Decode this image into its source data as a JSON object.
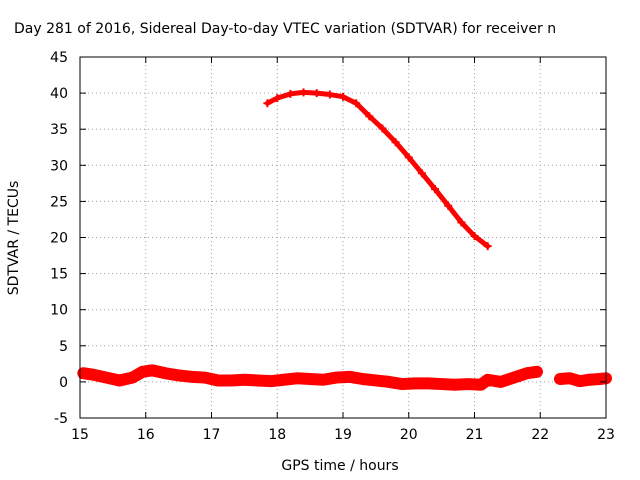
{
  "chart_data": {
    "type": "scatter",
    "title": "Day 281 of 2016, Sidereal Day-to-day VTEC variation (SDTVAR) for receiver n",
    "xlabel": "GPS time / hours",
    "ylabel": "SDTVAR / TECUs",
    "xlim": [
      15,
      23
    ],
    "ylim": [
      -5,
      45
    ],
    "xticks": [
      15,
      16,
      17,
      18,
      19,
      20,
      21,
      22,
      23
    ],
    "yticks": [
      -5,
      0,
      5,
      10,
      15,
      20,
      25,
      30,
      35,
      40,
      45
    ],
    "grid": true,
    "legend": "none",
    "marker_color": "#ff0000",
    "series": [
      {
        "values": [
          [
            17.85,
            38.6
          ],
          [
            18.0,
            39.3
          ],
          [
            18.2,
            39.9
          ],
          [
            18.4,
            40.1
          ],
          [
            18.6,
            40.0
          ],
          [
            18.8,
            39.8
          ],
          [
            19.0,
            39.5
          ],
          [
            19.2,
            38.6
          ],
          [
            19.4,
            36.8
          ],
          [
            19.6,
            35.1
          ],
          [
            19.8,
            33.2
          ],
          [
            20.0,
            31.1
          ],
          [
            20.2,
            28.9
          ],
          [
            20.4,
            26.7
          ],
          [
            20.6,
            24.4
          ],
          [
            20.8,
            22.1
          ],
          [
            21.0,
            20.2
          ],
          [
            21.2,
            18.8
          ]
        ]
      },
      {
        "values": [
          [
            15.05,
            1.2
          ],
          [
            15.2,
            1.0
          ],
          [
            15.4,
            0.6
          ],
          [
            15.6,
            0.2
          ],
          [
            15.8,
            0.6
          ],
          [
            15.95,
            1.4
          ],
          [
            16.1,
            1.6
          ],
          [
            16.3,
            1.2
          ],
          [
            16.5,
            0.9
          ],
          [
            16.7,
            0.7
          ],
          [
            16.9,
            0.6
          ],
          [
            17.1,
            0.2
          ],
          [
            17.3,
            0.2
          ],
          [
            17.5,
            0.3
          ],
          [
            17.7,
            0.2
          ],
          [
            17.9,
            0.1
          ],
          [
            18.1,
            0.3
          ],
          [
            18.3,
            0.5
          ],
          [
            18.5,
            0.4
          ],
          [
            18.7,
            0.3
          ],
          [
            18.9,
            0.6
          ],
          [
            19.1,
            0.7
          ],
          [
            19.3,
            0.4
          ],
          [
            19.5,
            0.2
          ],
          [
            19.7,
            0.0
          ],
          [
            19.9,
            -0.3
          ],
          [
            20.1,
            -0.2
          ],
          [
            20.3,
            -0.2
          ],
          [
            20.5,
            -0.3
          ],
          [
            20.7,
            -0.4
          ],
          [
            20.9,
            -0.3
          ],
          [
            21.1,
            -0.4
          ],
          [
            21.2,
            0.3
          ],
          [
            21.4,
            0.0
          ],
          [
            21.6,
            0.6
          ],
          [
            21.8,
            1.2
          ],
          [
            21.95,
            1.4
          ]
        ]
      },
      {
        "values": [
          [
            22.3,
            0.4
          ],
          [
            22.45,
            0.5
          ],
          [
            22.6,
            0.1
          ],
          [
            22.75,
            0.3
          ],
          [
            22.9,
            0.4
          ],
          [
            23.0,
            0.5
          ]
        ]
      }
    ]
  }
}
